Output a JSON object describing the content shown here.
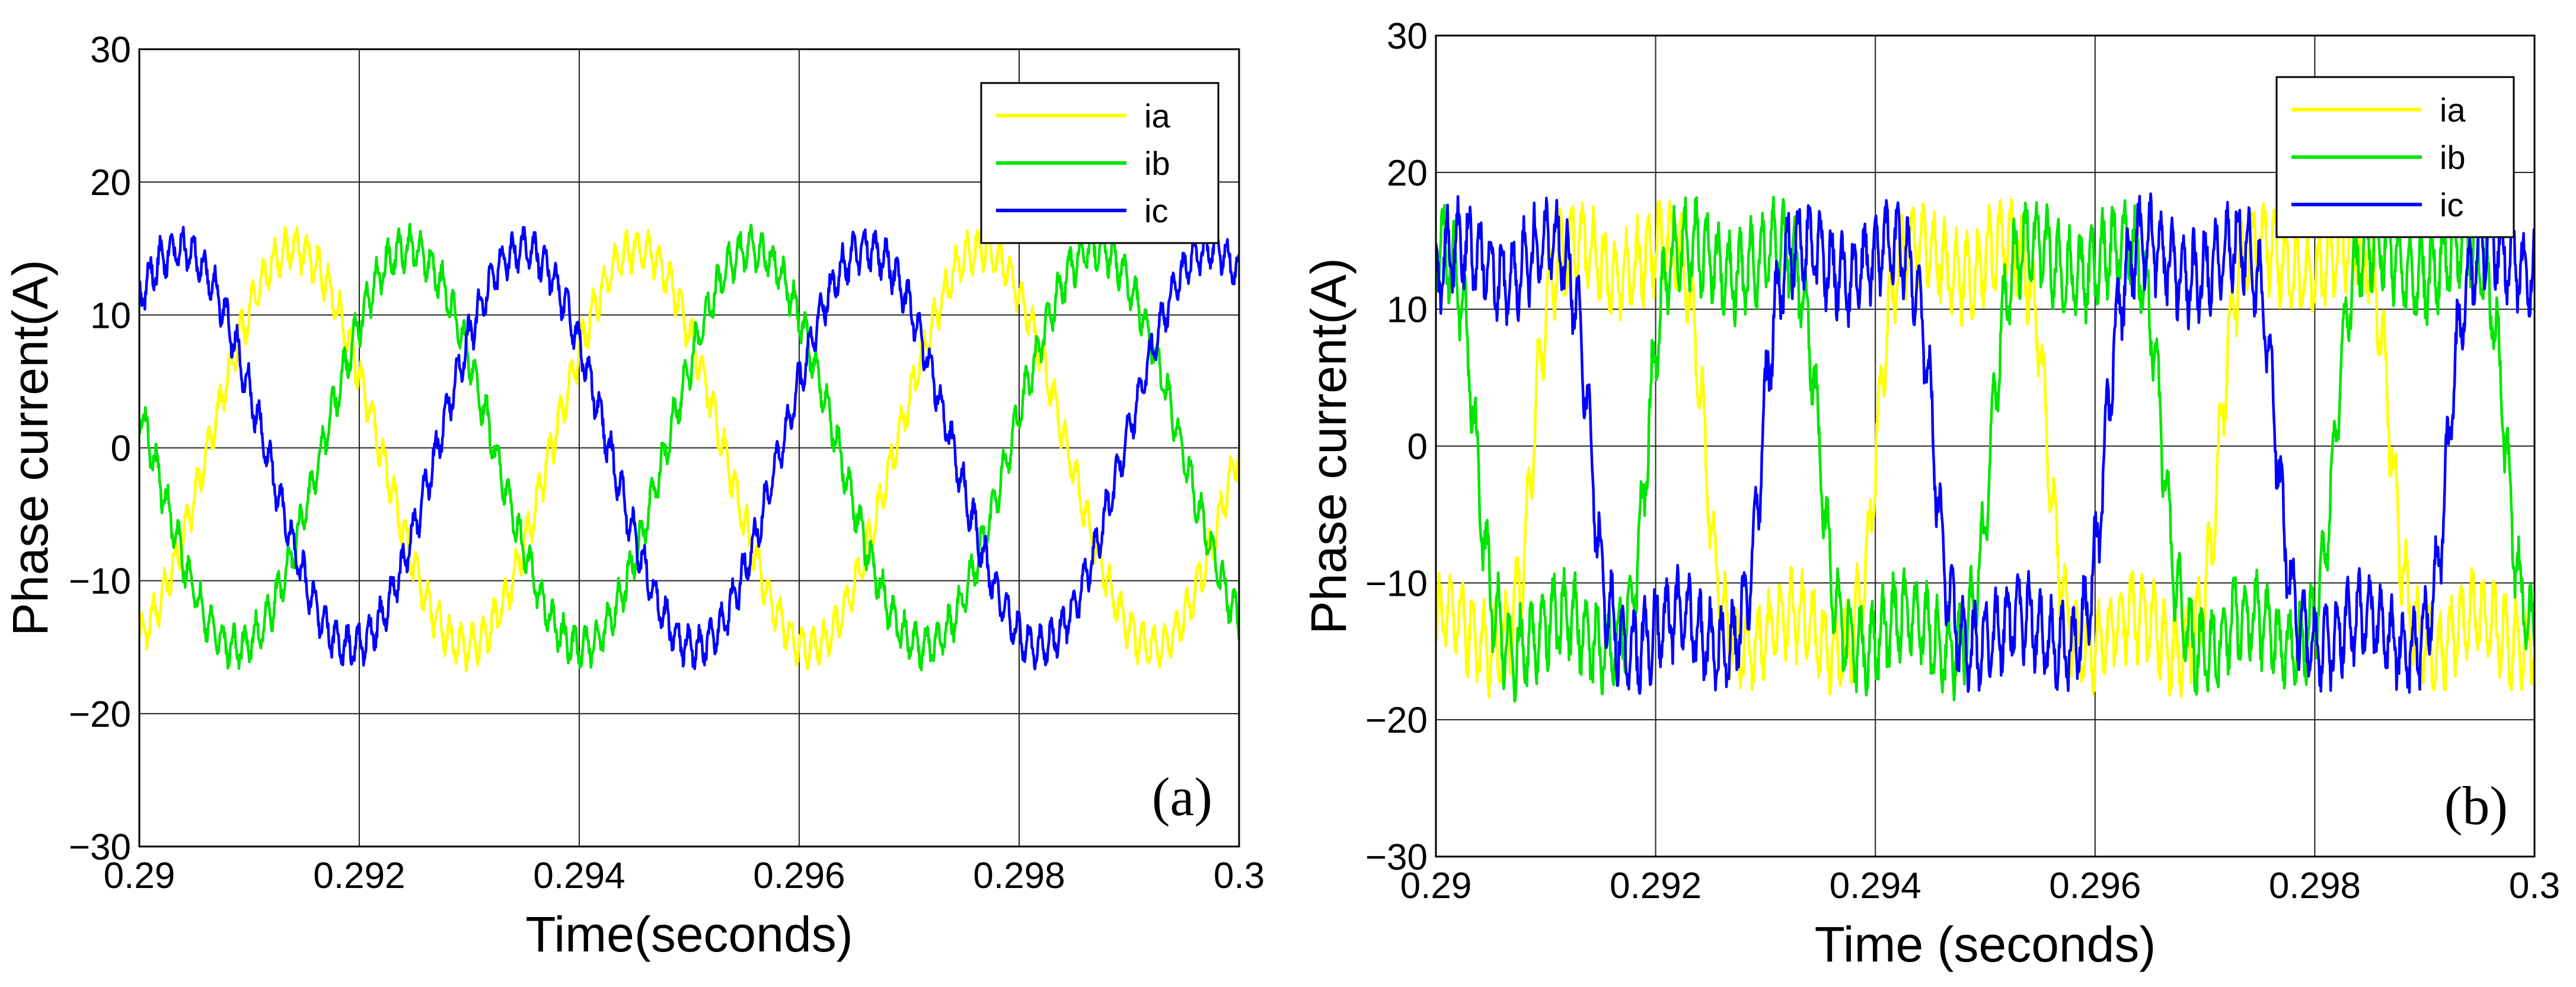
{
  "chart_data": [
    {
      "type": "line",
      "panel": "(a)",
      "xlabel": "Time(seconds)",
      "ylabel": "Phase current(A)",
      "xlim": [
        0.29,
        0.3
      ],
      "ylim": [
        -30,
        30
      ],
      "xticks": [
        "0.29",
        "0.292",
        "0.294",
        "0.296",
        "0.298",
        "0.3"
      ],
      "yticks": [
        "30",
        "20",
        "10",
        "0",
        "−10",
        "−20",
        "−30"
      ],
      "grid": true,
      "legend_position": "top-right",
      "waveform": {
        "amplitude_A": 15,
        "fundamental_Hz": 320,
        "ripple_A": 1.3,
        "ripple_Hz": 10000
      },
      "series": [
        {
          "name": "ia",
          "color": "#ffff00",
          "phase_deg": 0
        },
        {
          "name": "ib",
          "color": "#00e600",
          "phase_deg": -120
        },
        {
          "name": "ic",
          "color": "#0000ff",
          "phase_deg": 120
        }
      ]
    },
    {
      "type": "line",
      "panel": "(b)",
      "xlabel": "Time (seconds)",
      "ylabel": "Phase current(A)",
      "xlim": [
        0.29,
        0.3
      ],
      "ylim": [
        -30,
        30
      ],
      "xticks": [
        "0.29",
        "0.292",
        "0.294",
        "0.296",
        "0.298",
        "0.3"
      ],
      "yticks": [
        "30",
        "20",
        "10",
        "0",
        "−10",
        "−20",
        "−30"
      ],
      "grid": true,
      "legend_position": "top-right",
      "waveform": {
        "amplitude_A": 15,
        "fundamental_Hz": 320,
        "ripple_A": 2.6,
        "ripple_Hz": 10000,
        "quasi_square": true
      },
      "series": [
        {
          "name": "ia",
          "color": "#ffff00",
          "phase_deg": -30
        },
        {
          "name": "ib",
          "color": "#00e600",
          "phase_deg": -150
        },
        {
          "name": "ic",
          "color": "#0000ff",
          "phase_deg": 90
        }
      ]
    }
  ]
}
